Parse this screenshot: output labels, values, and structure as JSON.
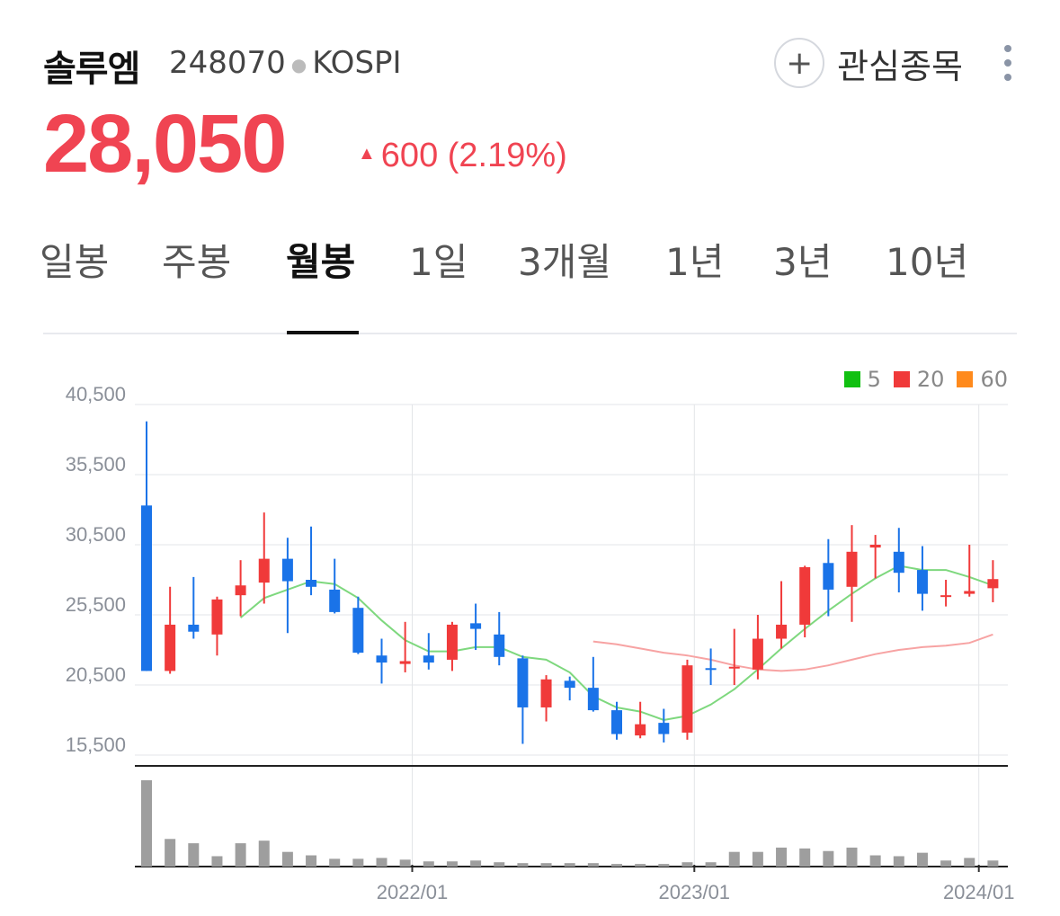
{
  "stock": {
    "name": "솔루엠",
    "code": "248070",
    "market": "KOSPI",
    "price": "28,050",
    "change_amount": "600",
    "change_percent": "(2.19%)",
    "up_color": "#f04452"
  },
  "actions": {
    "watch_label": "관심종목",
    "plus_glyph": "+",
    "more_icon": "more-vertical-icon"
  },
  "tabs": [
    {
      "label": "일봉",
      "active": false
    },
    {
      "label": "주봉",
      "active": false
    },
    {
      "label": "월봉",
      "active": true
    },
    {
      "label": "1일",
      "active": false
    },
    {
      "label": "3개월",
      "active": false
    },
    {
      "label": "1년",
      "active": false
    },
    {
      "label": "3년",
      "active": false
    },
    {
      "label": "10년",
      "active": false
    }
  ],
  "legend": [
    {
      "label": "5",
      "color": "#11c011"
    },
    {
      "label": "20",
      "color": "#f03a3a"
    },
    {
      "label": "60",
      "color": "#ff8a1c"
    }
  ],
  "chart_data": {
    "type": "candlestick",
    "interval": "monthly",
    "y_ticks": [
      40500,
      35500,
      30500,
      25500,
      20500,
      15500
    ],
    "y_tick_labels": [
      "40,500",
      "35,500",
      "30,500",
      "25,500",
      "20,500",
      "15,500"
    ],
    "ylim": [
      15500,
      40500
    ],
    "x_ticks": [
      "2022/01",
      "2023/01",
      "2024/01"
    ],
    "colors": {
      "up": "#f03a3a",
      "down": "#1a73e8",
      "ma5": "#7ed87e",
      "ma20": "#f7a3a3",
      "volume": "#9e9e9e"
    },
    "candles": [
      {
        "o": 33300,
        "h": 39300,
        "l": 21500,
        "c": 21500
      },
      {
        "o": 21500,
        "h": 27500,
        "l": 21300,
        "c": 24800
      },
      {
        "o": 24800,
        "h": 28200,
        "l": 23800,
        "c": 24300
      },
      {
        "o": 24100,
        "h": 26800,
        "l": 22600,
        "c": 26600
      },
      {
        "o": 26900,
        "h": 29400,
        "l": 25400,
        "c": 27600
      },
      {
        "o": 27800,
        "h": 32800,
        "l": 26300,
        "c": 29500
      },
      {
        "o": 29500,
        "h": 31000,
        "l": 24200,
        "c": 27900
      },
      {
        "o": 28000,
        "h": 31800,
        "l": 26900,
        "c": 27500
      },
      {
        "o": 27300,
        "h": 29500,
        "l": 25600,
        "c": 25700
      },
      {
        "o": 26000,
        "h": 26800,
        "l": 22700,
        "c": 22800
      },
      {
        "o": 22600,
        "h": 23800,
        "l": 20600,
        "c": 22100
      },
      {
        "o": 22000,
        "h": 25000,
        "l": 21400,
        "c": 22200
      },
      {
        "o": 22600,
        "h": 24200,
        "l": 21600,
        "c": 22100
      },
      {
        "o": 22300,
        "h": 25000,
        "l": 21500,
        "c": 24800
      },
      {
        "o": 24900,
        "h": 26300,
        "l": 23000,
        "c": 24500
      },
      {
        "o": 24100,
        "h": 25700,
        "l": 21900,
        "c": 22500
      },
      {
        "o": 22400,
        "h": 22600,
        "l": 16300,
        "c": 18900
      },
      {
        "o": 18900,
        "h": 21200,
        "l": 17900,
        "c": 20900
      },
      {
        "o": 20800,
        "h": 21100,
        "l": 19400,
        "c": 20300
      },
      {
        "o": 20300,
        "h": 22500,
        "l": 18600,
        "c": 18700
      },
      {
        "o": 18700,
        "h": 19300,
        "l": 16600,
        "c": 17000
      },
      {
        "o": 16900,
        "h": 19300,
        "l": 16700,
        "c": 17700
      },
      {
        "o": 17800,
        "h": 18800,
        "l": 16400,
        "c": 17000
      },
      {
        "o": 17100,
        "h": 22300,
        "l": 16600,
        "c": 21900
      },
      {
        "o": 21700,
        "h": 23100,
        "l": 20500,
        "c": 21600
      },
      {
        "o": 21700,
        "h": 24500,
        "l": 20500,
        "c": 21800
      },
      {
        "o": 21600,
        "h": 25500,
        "l": 20900,
        "c": 23800
      },
      {
        "o": 23800,
        "h": 27900,
        "l": 23100,
        "c": 24800
      },
      {
        "o": 24800,
        "h": 29000,
        "l": 23900,
        "c": 28900
      },
      {
        "o": 29200,
        "h": 30900,
        "l": 25400,
        "c": 27300
      },
      {
        "o": 27500,
        "h": 31900,
        "l": 25000,
        "c": 30000
      },
      {
        "o": 30300,
        "h": 31200,
        "l": 28100,
        "c": 30500
      },
      {
        "o": 30000,
        "h": 31700,
        "l": 27100,
        "c": 28500
      },
      {
        "o": 28700,
        "h": 30400,
        "l": 25800,
        "c": 27000
      },
      {
        "o": 26900,
        "h": 28000,
        "l": 26100,
        "c": 26900
      },
      {
        "o": 27000,
        "h": 30500,
        "l": 26800,
        "c": 27200
      },
      {
        "o": 27400,
        "h": 29400,
        "l": 26400,
        "c": 28050
      }
    ],
    "ma5": [
      {
        "i": 4,
        "v": 25300
      },
      {
        "i": 5,
        "v": 26700
      },
      {
        "i": 6,
        "v": 27300
      },
      {
        "i": 7,
        "v": 27900
      },
      {
        "i": 8,
        "v": 27700
      },
      {
        "i": 9,
        "v": 26700
      },
      {
        "i": 10,
        "v": 25100
      },
      {
        "i": 11,
        "v": 23700
      },
      {
        "i": 12,
        "v": 22900
      },
      {
        "i": 13,
        "v": 22900
      },
      {
        "i": 14,
        "v": 23200
      },
      {
        "i": 15,
        "v": 23200
      },
      {
        "i": 16,
        "v": 22500
      },
      {
        "i": 17,
        "v": 22300
      },
      {
        "i": 18,
        "v": 21400
      },
      {
        "i": 19,
        "v": 19700
      },
      {
        "i": 20,
        "v": 18900
      },
      {
        "i": 21,
        "v": 18600
      },
      {
        "i": 22,
        "v": 18000
      },
      {
        "i": 23,
        "v": 18300
      },
      {
        "i": 24,
        "v": 19100
      },
      {
        "i": 25,
        "v": 20200
      },
      {
        "i": 26,
        "v": 21600
      },
      {
        "i": 27,
        "v": 23100
      },
      {
        "i": 28,
        "v": 24500
      },
      {
        "i": 29,
        "v": 25800
      },
      {
        "i": 30,
        "v": 27000
      },
      {
        "i": 31,
        "v": 28100
      },
      {
        "i": 32,
        "v": 29000
      },
      {
        "i": 33,
        "v": 28700
      },
      {
        "i": 34,
        "v": 28700
      },
      {
        "i": 35,
        "v": 28200
      },
      {
        "i": 36,
        "v": 27600
      }
    ],
    "ma20": [
      {
        "i": 19,
        "v": 23600
      },
      {
        "i": 20,
        "v": 23400
      },
      {
        "i": 21,
        "v": 23100
      },
      {
        "i": 22,
        "v": 22800
      },
      {
        "i": 23,
        "v": 22600
      },
      {
        "i": 24,
        "v": 22300
      },
      {
        "i": 25,
        "v": 21900
      },
      {
        "i": 26,
        "v": 21600
      },
      {
        "i": 27,
        "v": 21500
      },
      {
        "i": 28,
        "v": 21600
      },
      {
        "i": 29,
        "v": 21900
      },
      {
        "i": 30,
        "v": 22300
      },
      {
        "i": 31,
        "v": 22700
      },
      {
        "i": 32,
        "v": 23000
      },
      {
        "i": 33,
        "v": 23200
      },
      {
        "i": 34,
        "v": 23300
      },
      {
        "i": 35,
        "v": 23500
      },
      {
        "i": 36,
        "v": 24100
      }
    ],
    "volume": [
      100,
      32,
      27,
      12,
      27,
      30,
      17,
      13,
      9,
      9,
      10,
      8,
      6,
      6,
      7,
      5,
      4,
      4,
      4,
      4,
      3,
      3,
      3,
      5,
      5,
      17,
      17,
      22,
      21,
      18,
      22,
      13,
      12,
      16,
      7,
      10,
      7
    ]
  }
}
